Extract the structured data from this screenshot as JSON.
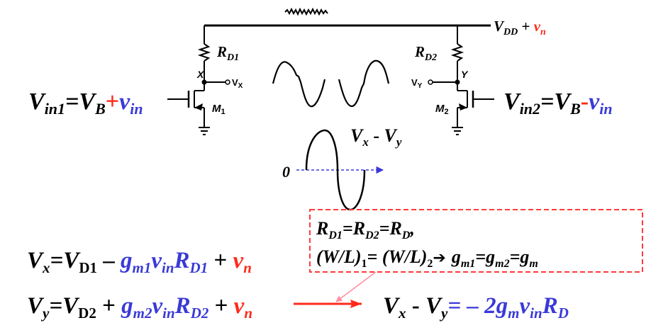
{
  "colors": {
    "ink": "#000000",
    "red": "#ff2a1a",
    "blue": "#3a3ad8",
    "dashed_box": "#ff3b3b",
    "pink_pointer": "#ff8fa0"
  },
  "supply": {
    "v": "V",
    "sub": "DD",
    "plus": " + ",
    "noise_v": "v",
    "noise_sub": "n"
  },
  "resistors": {
    "rd1": {
      "letter": "R",
      "sub": "D1"
    },
    "rd2": {
      "letter": "R",
      "sub": "D2"
    }
  },
  "nodes": {
    "x": {
      "name": "X",
      "out_v": "V",
      "out_sub": "X"
    },
    "y": {
      "name": "Y",
      "out_v": "V",
      "out_sub": "Y"
    }
  },
  "transistors": {
    "m1": {
      "letter": "M",
      "sub": "1"
    },
    "m2": {
      "letter": "M",
      "sub": "2"
    }
  },
  "vin1": {
    "v": "V",
    "sub": "in1",
    "eq": "=V",
    "b_sub": "B",
    "sign": "+",
    "v2": "v",
    "v2_sub": "in"
  },
  "vin2": {
    "v": "V",
    "sub": "in2",
    "eq": "=V",
    "b_sub": "B",
    "sign": "-",
    "v2": "v",
    "v2_sub": "in"
  },
  "diff_wave": {
    "label_a": "V",
    "label_a_sub": "x",
    "minus": " - ",
    "label_b": "V",
    "label_b_sub": "y",
    "zero": "0"
  },
  "box": {
    "line1": {
      "r": "R",
      "s1": "D1",
      "eq1": "=R",
      "s2": "D2",
      "eq2": "=R",
      "s3": "D",
      "tail": ","
    },
    "line2": {
      "wl": "(W/L)",
      "s1": "1",
      "eq": "= (W/L)",
      "s2": "2",
      "arrow": "➔",
      "g": "g",
      "gs1": "m1",
      "eq2": "=g",
      "gs2": "m2",
      "eq3": "=g",
      "gs3": "m"
    }
  },
  "eq_x": {
    "v": "V",
    "vs": "x",
    "eq": "=V",
    "ds": "D1",
    "minus": " – ",
    "g": "g",
    "gs": "m1",
    "vin": "v",
    "vins": "in",
    "r": "R",
    "rs": "D1",
    "plus": " + ",
    "n": "v",
    "ns": "n"
  },
  "eq_y": {
    "v": "V",
    "vs": "y",
    "eq": "=V",
    "ds": "D2",
    "plus1": " + ",
    "g": "g",
    "gs": "m2",
    "vin": "v",
    "vins": "in",
    "r": "R",
    "rs": "D2",
    "plus": " + ",
    "n": "v",
    "ns": "n"
  },
  "result": {
    "v1": "V",
    "v1s": "x",
    "minus": " - ",
    "v2": "V",
    "v2s": "y",
    "eq": "= – 2g",
    "gs": "m",
    "vin": "v",
    "vins": "in",
    "r": "R",
    "rs": "D"
  }
}
